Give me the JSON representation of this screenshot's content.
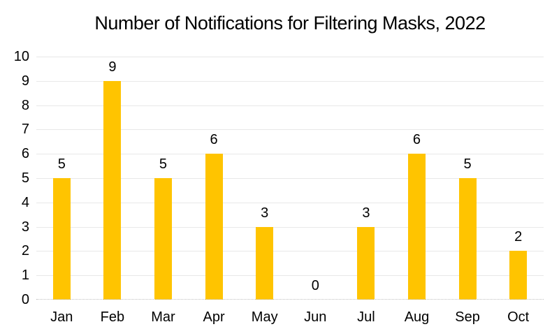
{
  "chart_data": {
    "type": "bar",
    "title": "Number of Notifications for Filtering Masks, 2022",
    "categories": [
      "Jan",
      "Feb",
      "Mar",
      "Apr",
      "May",
      "Jun",
      "Jul",
      "Aug",
      "Sep",
      "Oct"
    ],
    "values": [
      5,
      9,
      5,
      6,
      3,
      0,
      3,
      6,
      5,
      2
    ],
    "xlabel": "",
    "ylabel": "",
    "ylim": [
      0,
      10
    ],
    "yticks": [
      0,
      1,
      2,
      3,
      4,
      5,
      6,
      7,
      8,
      9,
      10
    ],
    "grid": "horizontal-major",
    "legend": "none",
    "data_labels": true,
    "bar_color": "#ffc400"
  },
  "colors": {
    "bar": "#ffc400",
    "gridline": "#e8e8e8",
    "baseline": "#bfbfbf",
    "text": "#000000",
    "background": "#ffffff"
  }
}
